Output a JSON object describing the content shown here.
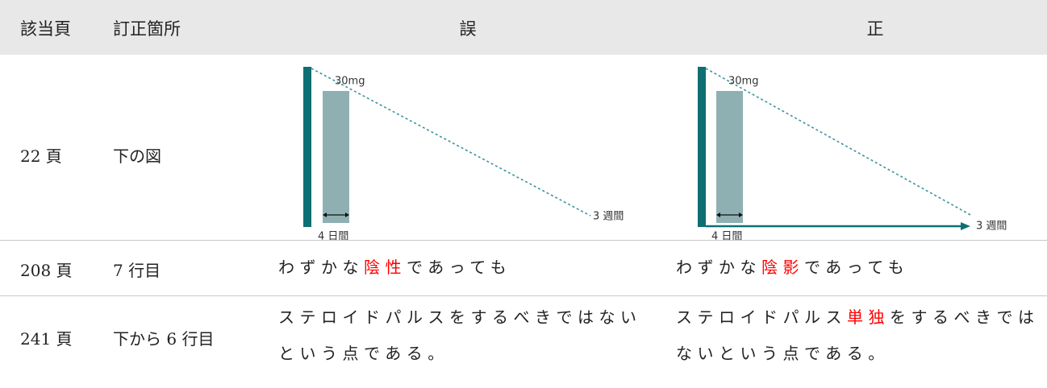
{
  "header": [
    "該当頁",
    "訂正箇所",
    "誤",
    "正"
  ],
  "rows": [
    {
      "page": "22 頁",
      "location": "下の図",
      "wrong": {
        "dose": "30mg",
        "short": "4 日間",
        "long": "3 週間"
      },
      "correct": {
        "dose": "30mg",
        "short": "4 日間",
        "long": "3 週間"
      }
    },
    {
      "page": "208 頁",
      "location": "7 行目",
      "wrong": [
        {
          "text": "わずかな"
        },
        {
          "text": "陰性",
          "color": "#ff0000"
        },
        {
          "text": "であっても"
        }
      ],
      "correct": [
        {
          "text": "わずかな"
        },
        {
          "text": "陰影",
          "color": "#ff0000"
        },
        {
          "text": "であっても"
        }
      ]
    },
    {
      "page": "241 頁",
      "location": "下から 6 行目",
      "wrong": [
        {
          "text": "ステロイドパルスをするべきではないという点である。"
        }
      ],
      "correct": [
        {
          "text": "ステロイドパルス"
        },
        {
          "text": "単独",
          "color": "#ff0000"
        },
        {
          "text": "をするべきではないという点である。"
        }
      ]
    }
  ]
}
